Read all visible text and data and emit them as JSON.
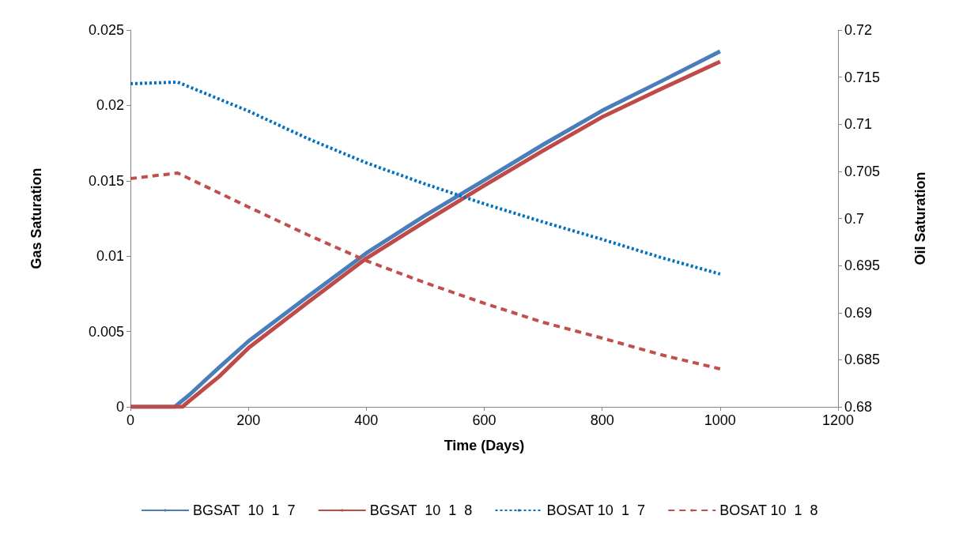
{
  "chart_data": {
    "type": "line",
    "xlabel": "Time (Days)",
    "ylabel": "Gas Saturation",
    "y2label": "Oil Saturation",
    "xlim": [
      0,
      1200
    ],
    "xticks": [
      0,
      200,
      400,
      600,
      800,
      1000,
      1200
    ],
    "ylim": [
      0,
      0.025
    ],
    "yticks": [
      0,
      0.005,
      0.01,
      0.015,
      0.02,
      0.025
    ],
    "y2lim": [
      0.68,
      0.72
    ],
    "y2ticks": [
      0.68,
      0.685,
      0.69,
      0.695,
      0.7,
      0.705,
      0.71,
      0.715,
      0.72
    ],
    "grid": false,
    "legend": "bottom",
    "marker": "none",
    "series": [
      {
        "name": "BGSAT  10  1  7",
        "color": "#4a7ebb",
        "line_style": "solid",
        "x": [
          0,
          75,
          100,
          150,
          200,
          300,
          400,
          500,
          600,
          700,
          800,
          900,
          1000
        ],
        "values": [
          0,
          0,
          0.0008,
          0.0026,
          0.00435,
          0.0073,
          0.0102,
          0.0127,
          0.01504,
          0.0174,
          0.01965,
          0.0216,
          0.02358
        ]
      },
      {
        "name": "BGSAT  10  1  8",
        "color": "#be4b48",
        "line_style": "solid",
        "x": [
          0,
          88,
          100,
          150,
          200,
          300,
          400,
          500,
          600,
          700,
          800,
          900,
          1000
        ],
        "values": [
          0,
          0,
          0.0004,
          0.002,
          0.0039,
          0.0069,
          0.00985,
          0.0123,
          0.01468,
          0.017,
          0.01923,
          0.0211,
          0.0229
        ]
      },
      {
        "name": "BOSAT 10  1  7",
        "color": "#0070c0",
        "line_style": "dotted",
        "axis": "y2",
        "x": [
          0,
          80,
          200,
          300,
          400,
          500,
          600,
          700,
          800,
          900,
          1000
        ],
        "values": [
          0.7143,
          0.71447,
          0.7114,
          0.7085,
          0.7059,
          0.70365,
          0.70155,
          0.69962,
          0.69778,
          0.69585,
          0.6941
        ]
      },
      {
        "name": "BOSAT 10  1  8",
        "color": "#c0504d",
        "line_style": "dashed",
        "axis": "y2",
        "x": [
          0,
          80,
          200,
          300,
          400,
          500,
          600,
          700,
          800,
          900,
          1000
        ],
        "values": [
          0.70423,
          0.70482,
          0.70122,
          0.69828,
          0.69551,
          0.69317,
          0.69099,
          0.68897,
          0.6873,
          0.68553,
          0.68403
        ]
      }
    ]
  }
}
